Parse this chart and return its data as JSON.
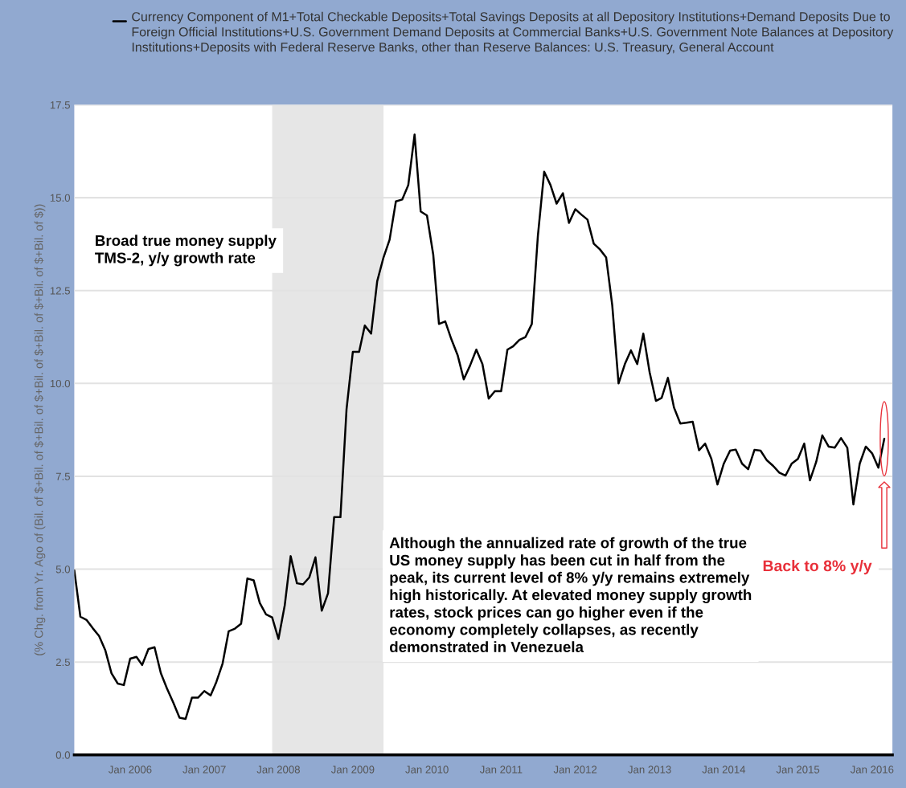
{
  "chart_data": {
    "type": "line",
    "ylabel": "(% Chg. from Yr. Ago of (Bil. of $+Bil. of $+Bil. of $+Bil. of $+Bil. of $+Bil. of $+Bil. of $))",
    "x": [
      "2005-04",
      "2005-05",
      "2005-06",
      "2005-07",
      "2005-08",
      "2005-09",
      "2005-10",
      "2005-11",
      "2005-12",
      "2006-01",
      "2006-02",
      "2006-03",
      "2006-04",
      "2006-05",
      "2006-06",
      "2006-07",
      "2006-08",
      "2006-09",
      "2006-10",
      "2006-11",
      "2006-12",
      "2007-01",
      "2007-02",
      "2007-03",
      "2007-04",
      "2007-05",
      "2007-06",
      "2007-07",
      "2007-08",
      "2007-09",
      "2007-10",
      "2007-11",
      "2007-12",
      "2008-01",
      "2008-02",
      "2008-03",
      "2008-04",
      "2008-05",
      "2008-06",
      "2008-07",
      "2008-08",
      "2008-09",
      "2008-10",
      "2008-11",
      "2008-12",
      "2009-01",
      "2009-02",
      "2009-03",
      "2009-04",
      "2009-05",
      "2009-06",
      "2009-07",
      "2009-08",
      "2009-09",
      "2009-10",
      "2009-11",
      "2009-12",
      "2010-01",
      "2010-02",
      "2010-03",
      "2010-04",
      "2010-05",
      "2010-06",
      "2010-07",
      "2010-08",
      "2010-09",
      "2010-10",
      "2010-11",
      "2010-12",
      "2011-01",
      "2011-02",
      "2011-03",
      "2011-04",
      "2011-05",
      "2011-06",
      "2011-07",
      "2011-08",
      "2011-09",
      "2011-10",
      "2011-11",
      "2011-12",
      "2012-01",
      "2012-02",
      "2012-03",
      "2012-04",
      "2012-05",
      "2012-06",
      "2012-07",
      "2012-08",
      "2012-09",
      "2012-10",
      "2012-11",
      "2012-12",
      "2013-01",
      "2013-02",
      "2013-03",
      "2013-04",
      "2013-05",
      "2013-06",
      "2013-07",
      "2013-08",
      "2013-09",
      "2013-10",
      "2013-11",
      "2013-12",
      "2014-01",
      "2014-02",
      "2014-03",
      "2014-04",
      "2014-05",
      "2014-06",
      "2014-07",
      "2014-08",
      "2014-09",
      "2014-10",
      "2014-11",
      "2014-12",
      "2015-01",
      "2015-02",
      "2015-03",
      "2015-04",
      "2015-05",
      "2015-06",
      "2015-07",
      "2015-08",
      "2015-09",
      "2015-10",
      "2015-11",
      "2015-12",
      "2016-01",
      "2016-02",
      "2016-03"
    ],
    "series": [
      {
        "name": "Currency Component of M1+Total Checkable Deposits+Total Savings Deposits at all Depository Institutions+Demand Deposits Due to Foreign Official Institutions+U.S. Government Demand Deposits at Commercial Banks+U.S. Government Note Balances at Depository Institutions+Deposits with Federal Reserve Banks, other than Reserve Balances: U.S. Treasury, General Account",
        "color": "#000000",
        "values": [
          4.97,
          3.72,
          3.63,
          3.41,
          3.2,
          2.81,
          2.2,
          1.92,
          1.88,
          2.59,
          2.64,
          2.42,
          2.85,
          2.9,
          2.2,
          1.79,
          1.41,
          1.0,
          0.97,
          1.54,
          1.54,
          1.72,
          1.6,
          1.96,
          2.46,
          3.33,
          3.4,
          3.53,
          4.75,
          4.7,
          4.09,
          3.78,
          3.7,
          3.12,
          4.03,
          5.35,
          4.62,
          4.59,
          4.78,
          5.32,
          3.88,
          4.35,
          6.4,
          6.4,
          9.3,
          10.85,
          10.85,
          11.56,
          11.34,
          12.75,
          13.39,
          13.87,
          14.9,
          14.95,
          15.34,
          16.7,
          14.63,
          14.52,
          13.46,
          11.6,
          11.67,
          11.19,
          10.76,
          10.11,
          10.48,
          10.91,
          10.52,
          9.59,
          9.79,
          9.79,
          10.91,
          11.0,
          11.17,
          11.25,
          11.6,
          13.98,
          15.7,
          15.34,
          14.84,
          15.12,
          14.32,
          14.69,
          14.54,
          14.41,
          13.76,
          13.61,
          13.39,
          12.1,
          10.0,
          10.52,
          10.89,
          10.52,
          11.34,
          10.3,
          9.53,
          9.61,
          10.15,
          9.35,
          8.92,
          8.94,
          8.97,
          8.2,
          8.38,
          7.97,
          7.28,
          7.84,
          8.19,
          8.22,
          7.84,
          7.69,
          8.21,
          8.19,
          7.93,
          7.78,
          7.6,
          7.52,
          7.84,
          7.97,
          8.38,
          7.39,
          7.89,
          8.6,
          8.3,
          8.27,
          8.53,
          8.27,
          6.74,
          7.84,
          8.3,
          8.12,
          7.73,
          8.51
        ]
      }
    ],
    "xlim": [
      "2005-04-01",
      "2016-04-10"
    ],
    "xticks": [
      {
        "value": "2006-01",
        "label": "Jan 2006"
      },
      {
        "value": "2007-01",
        "label": "Jan 2007"
      },
      {
        "value": "2008-01",
        "label": "Jan 2008"
      },
      {
        "value": "2009-01",
        "label": "Jan 2009"
      },
      {
        "value": "2010-01",
        "label": "Jan 2010"
      },
      {
        "value": "2011-01",
        "label": "Jan 2011"
      },
      {
        "value": "2012-01",
        "label": "Jan 2012"
      },
      {
        "value": "2013-01",
        "label": "Jan 2013"
      },
      {
        "value": "2014-01",
        "label": "Jan 2014"
      },
      {
        "value": "2015-01",
        "label": "Jan 2015"
      },
      {
        "value": "2016-01",
        "label": "Jan 2016"
      }
    ],
    "ylim": [
      0,
      17.5
    ],
    "yticks": [
      {
        "value": 0,
        "label": "0.0"
      },
      2.5,
      {
        "value": 5,
        "label": "5.0"
      },
      7.5,
      {
        "value": 10,
        "label": "10.0"
      },
      12.5,
      {
        "value": 15,
        "label": "15.0"
      },
      17.5
    ],
    "bands": [
      {
        "axis": "x",
        "from": "2007-12",
        "to": "2009-06",
        "color": "#e6e6e6"
      }
    ],
    "annotations": [
      "Broad true money supply\nTMS-2, y/y growth rate",
      "Although the annualized rate of growth of the true\nUS money supply has been cut in half from the\npeak, its current level of 8% y/y remains extremely\nhigh historically. At elevated money supply growth\nrates, stock prices can go higher even if the\neconomy completely collapses, as recently\ndemonstrated in Venezuela",
      "Back to 8% y/y"
    ],
    "grid": "y",
    "legend": "top"
  }
}
